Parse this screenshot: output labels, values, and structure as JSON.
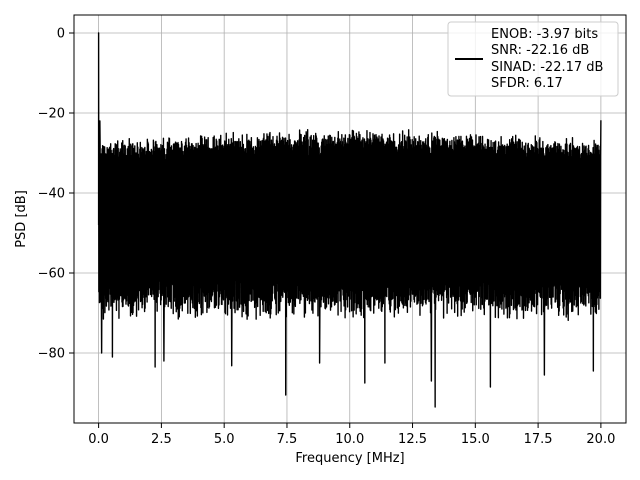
{
  "chart_data": {
    "type": "line",
    "title": "",
    "xlabel": "Frequency [MHz]",
    "ylabel": "PSD [dB]",
    "xlim": [
      -0.98,
      21.0
    ],
    "ylim": [
      -97.5,
      4.5
    ],
    "xticks": [
      0.0,
      2.5,
      5.0,
      7.5,
      10.0,
      12.5,
      15.0,
      17.5,
      20.0
    ],
    "xtick_labels": [
      "0.0",
      "2.5",
      "5.0",
      "7.5",
      "10.0",
      "12.5",
      "15.0",
      "17.5",
      "20.0"
    ],
    "yticks": [
      0,
      -20,
      -40,
      -60,
      -80
    ],
    "ytick_labels": [
      "0",
      "−20",
      "−40",
      "−60",
      "−80"
    ],
    "grid": true,
    "legend_position": "top-right",
    "series": [
      {
        "name": "ENOB: -3.97 bits\nSNR: -22.16 dB\nSINAD: -22.17 dB\nSFDR: 6.17",
        "legend_lines": [
          "ENOB: -3.97 bits",
          "SNR: -22.16 dB",
          "SINAD: -22.17 dB",
          "SFDR: 6.17"
        ],
        "color": "#000000",
        "x_range": [
          0.0,
          20.0
        ],
        "samples": 2000,
        "noise_floor_upper_db": [
          -29,
          -24
        ],
        "noise_floor_lower_db": [
          -72,
          -66
        ],
        "spikes": [
          {
            "x": 0.0,
            "y": 0.0
          },
          {
            "x": 0.05,
            "y": -22.0
          },
          {
            "x": 20.0,
            "y": -21.8
          }
        ],
        "dips": [
          {
            "x": 0.12,
            "y": -80.0
          },
          {
            "x": 0.55,
            "y": -81.0
          },
          {
            "x": 2.25,
            "y": -83.5
          },
          {
            "x": 2.6,
            "y": -82.0
          },
          {
            "x": 5.3,
            "y": -83.2
          },
          {
            "x": 7.45,
            "y": -90.5
          },
          {
            "x": 8.8,
            "y": -82.5
          },
          {
            "x": 10.6,
            "y": -87.5
          },
          {
            "x": 11.4,
            "y": -82.5
          },
          {
            "x": 13.25,
            "y": -87.0
          },
          {
            "x": 13.4,
            "y": -93.5
          },
          {
            "x": 15.6,
            "y": -88.5
          },
          {
            "x": 17.75,
            "y": -85.5
          },
          {
            "x": 19.7,
            "y": -84.5
          }
        ]
      }
    ]
  }
}
